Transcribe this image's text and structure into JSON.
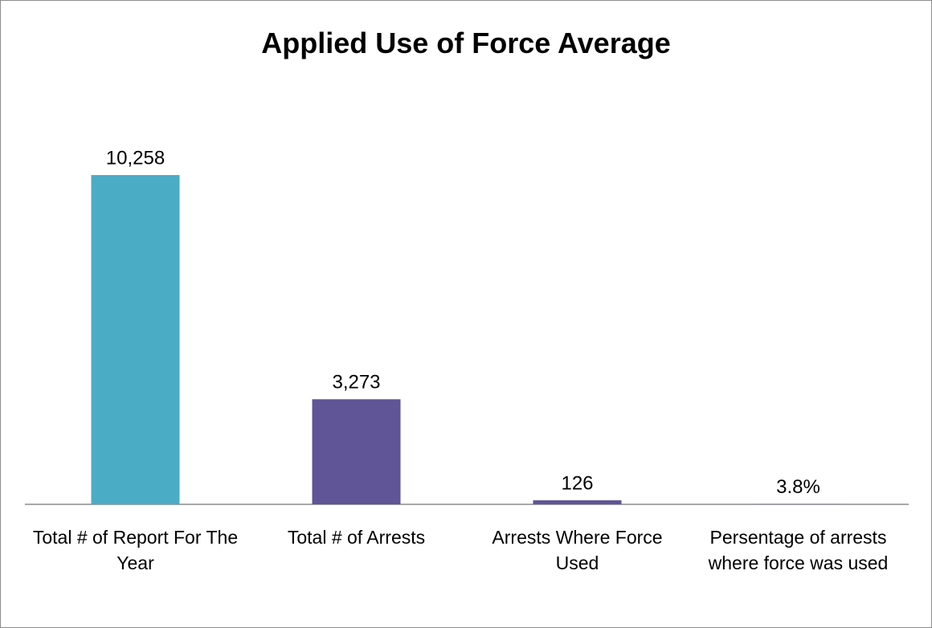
{
  "chart_data": {
    "type": "bar",
    "title": "Applied Use of Force Average",
    "categories": [
      "Total # of Report For The Year",
      "Total # of Arrests",
      "Arrests Where Force Used",
      "Persentage of arrests where force was used"
    ],
    "values": [
      10258,
      3273,
      126,
      3.8
    ],
    "value_labels": [
      "10,258",
      "3,273",
      "126",
      "3.8%"
    ],
    "colors": [
      "#4bacc6",
      "#5f5597",
      "#5f5597",
      "#5f5597"
    ]
  }
}
